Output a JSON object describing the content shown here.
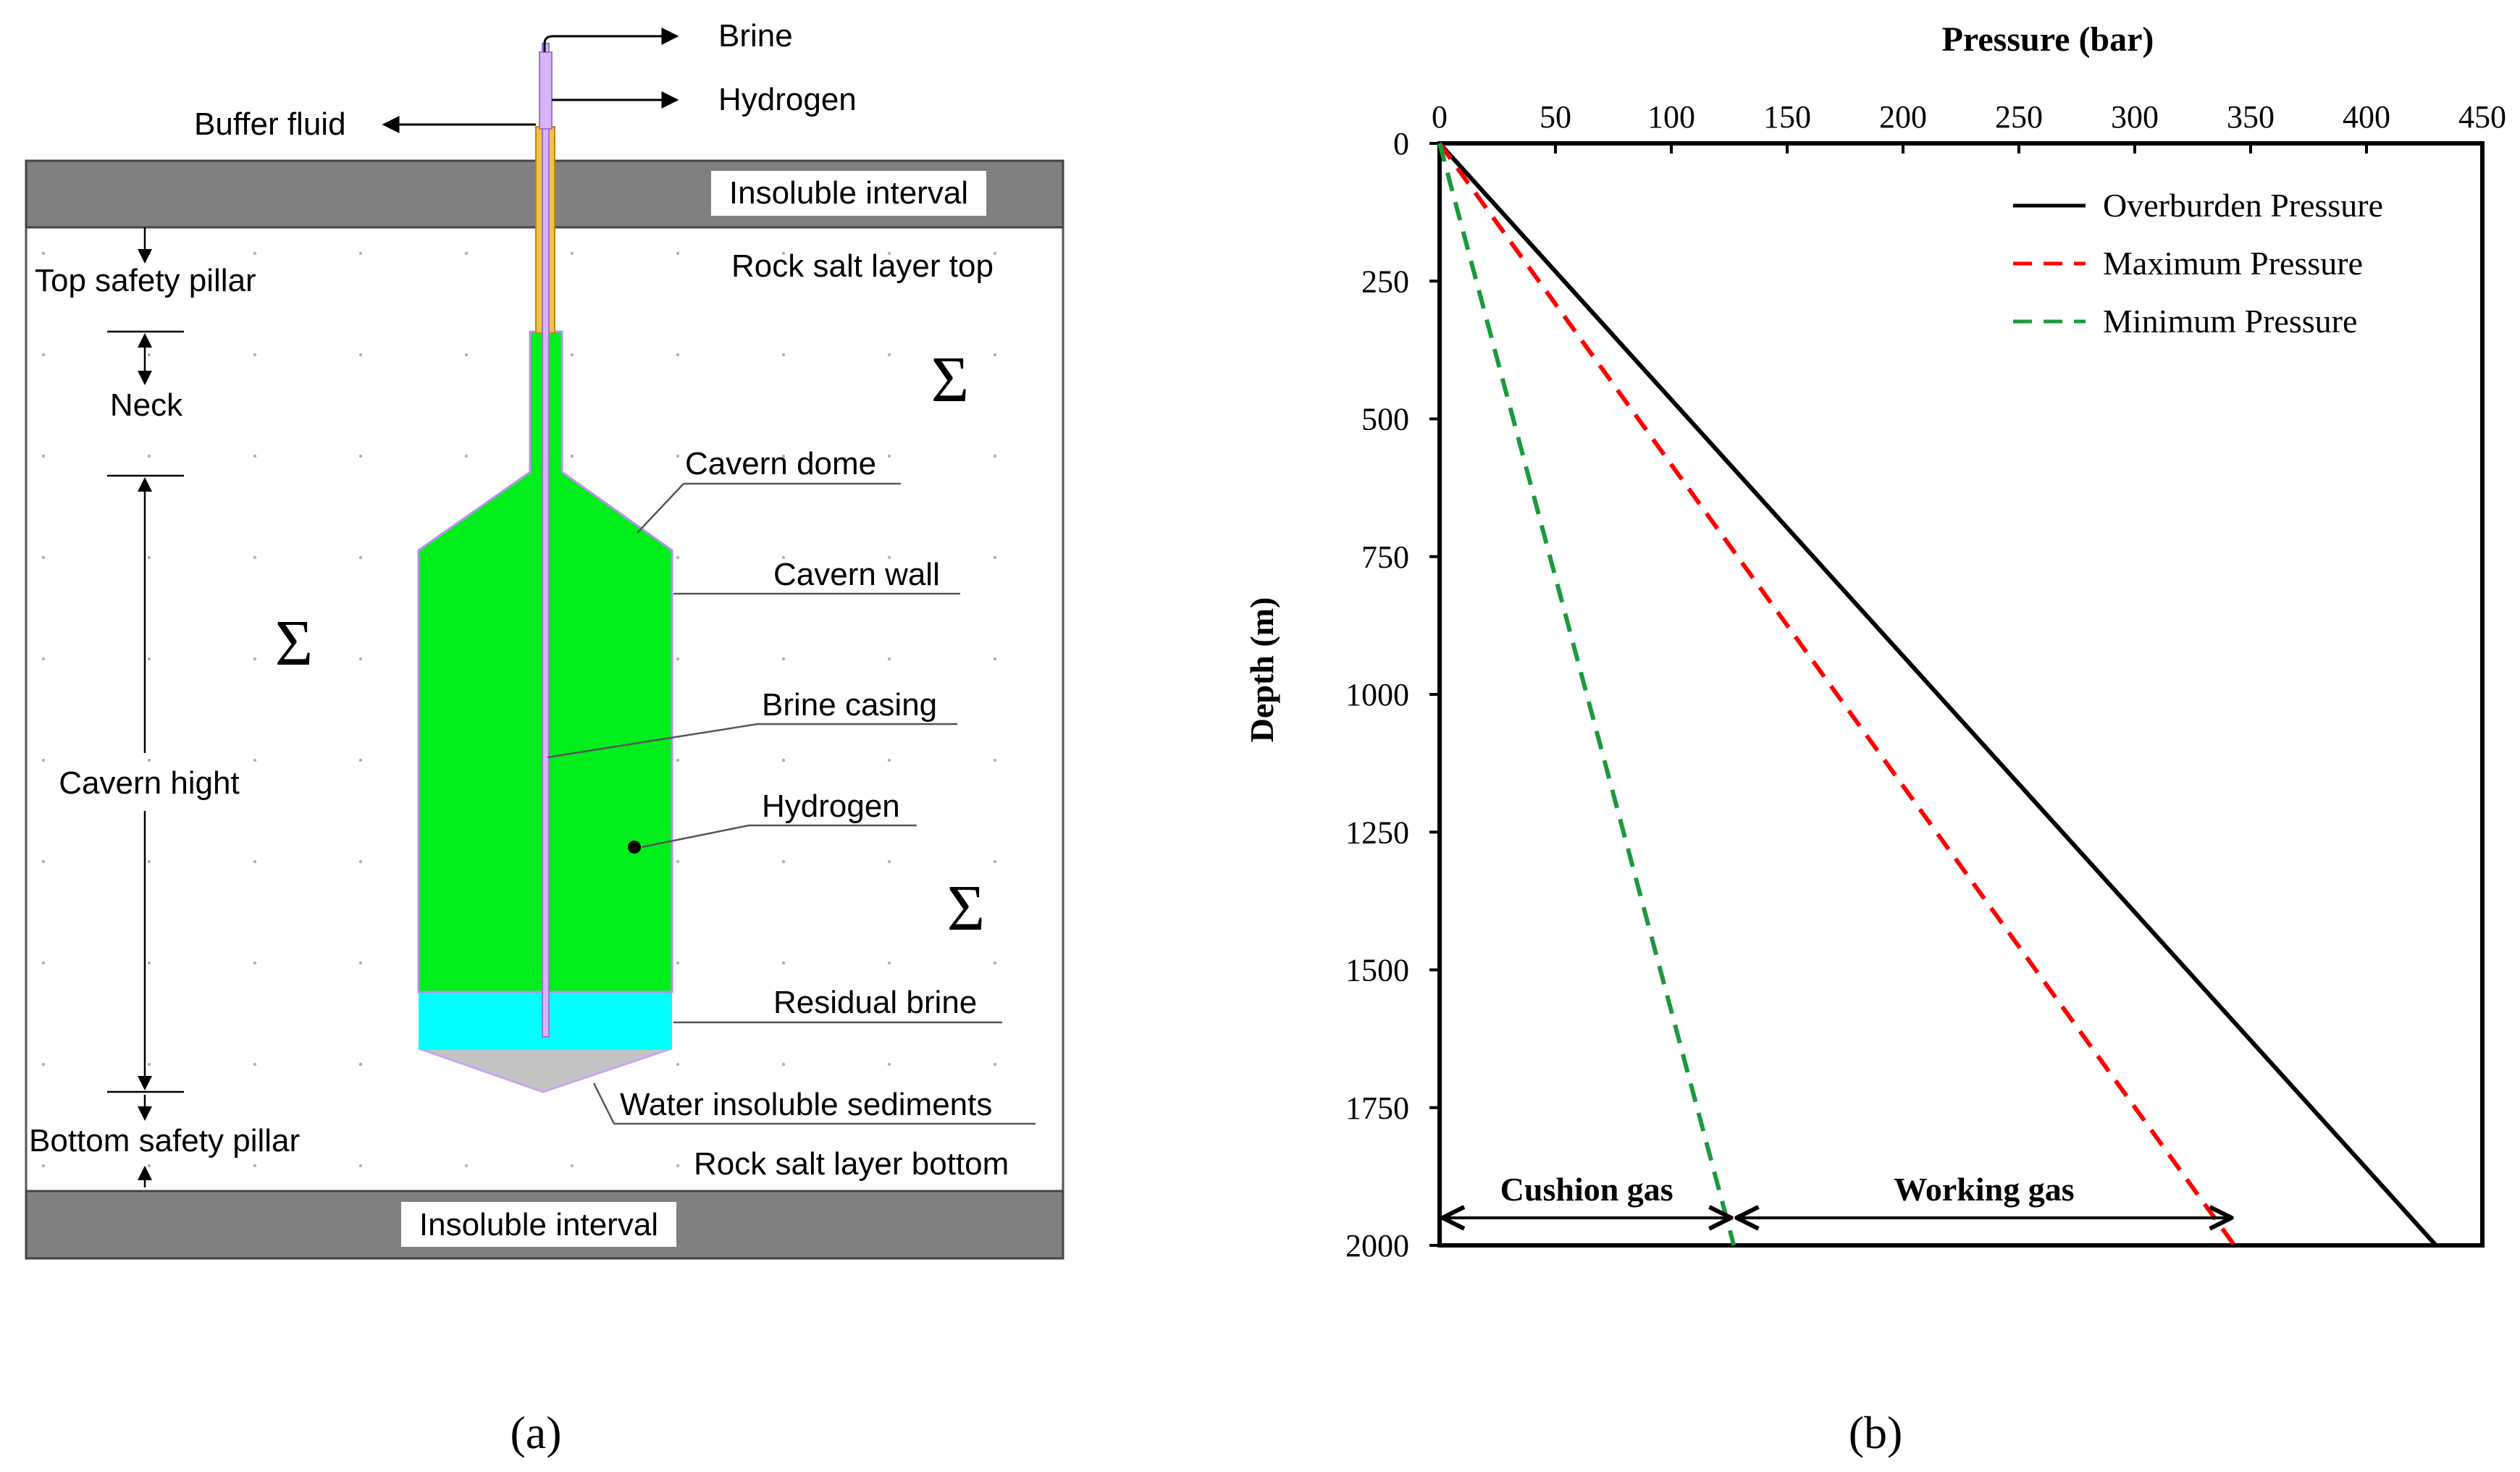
{
  "panel_a": {
    "label": "(a)",
    "top_interval": "Insoluble interval",
    "bottom_interval": "Insoluble interval",
    "pipes": {
      "brine": "Brine",
      "hydrogen": "Hydrogen",
      "buffer_fluid": "Buffer fluid"
    },
    "layer_top": "Rock salt layer top",
    "layer_bottom": "Rock salt layer bottom",
    "dimensions": {
      "top_pillar": "Top safety pillar",
      "neck": "Neck",
      "cavern_height": "Cavern hight",
      "bottom_pillar": "Bottom safety pillar"
    },
    "callouts": {
      "cavern_dome": "Cavern dome",
      "cavern_wall": "Cavern wall",
      "brine_casing": "Brine casing",
      "hydrogen": "Hydrogen",
      "residual_brine": "Residual brine",
      "sediments": "Water insoluble sediments"
    },
    "sigma_symbol": "Σ",
    "colors": {
      "interval": "#808080",
      "cavern": "#00ee1c",
      "brine": "#00ffff",
      "sediment": "#c4c4c4",
      "casing": "#d8b4f8",
      "buffer": "#f3c040"
    }
  },
  "panel_b": {
    "label": "(b)",
    "chart_data": {
      "type": "line",
      "xlabel": "Pressure (bar)",
      "ylabel": "Depth (m)",
      "xlim": [
        0,
        450
      ],
      "ylim": [
        0,
        2000
      ],
      "y_inverted": true,
      "x_axis_position": "top",
      "x_ticks": [
        0,
        50,
        100,
        150,
        200,
        250,
        300,
        350,
        400,
        450
      ],
      "y_ticks": [
        0,
        250,
        500,
        750,
        1000,
        1250,
        1500,
        1750,
        2000
      ],
      "legend_position": "top-right",
      "grid": false,
      "series": [
        {
          "name": "Overburden Pressure",
          "color": "#000000",
          "style": "solid",
          "points": [
            [
              0,
              0
            ],
            [
              430,
              2000
            ]
          ]
        },
        {
          "name": "Maximum Pressure",
          "color": "#ff0000",
          "style": "dashed",
          "points": [
            [
              0,
              0
            ],
            [
              343,
              2000
            ]
          ]
        },
        {
          "name": "Minimum Pressure",
          "color": "#1a9a3c",
          "style": "dashed",
          "points": [
            [
              0,
              0
            ],
            [
              127,
              2000
            ]
          ]
        }
      ],
      "annotations": [
        {
          "text": "Cushion gas",
          "x_from": 0,
          "x_to": 127,
          "y": 1950
        },
        {
          "text": "Working gas",
          "x_from": 127,
          "x_to": 343,
          "y": 1950
        }
      ]
    }
  }
}
